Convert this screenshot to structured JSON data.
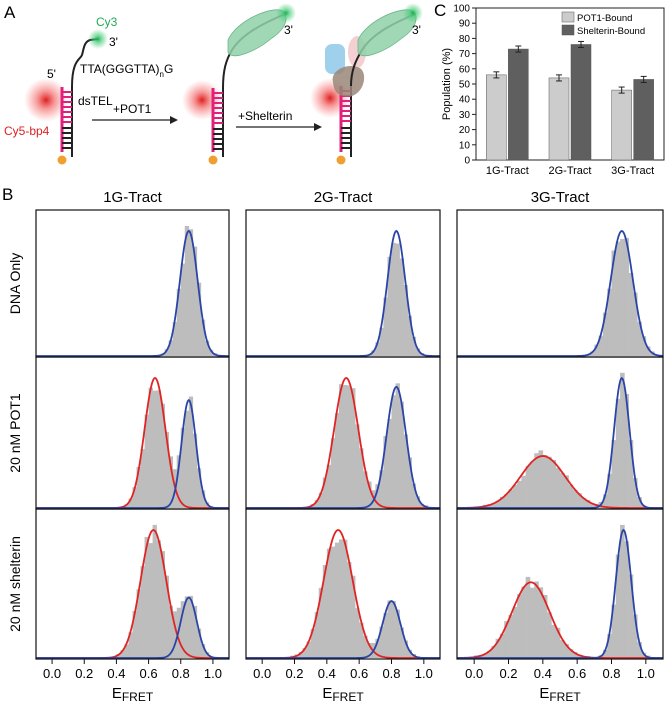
{
  "panels": {
    "a": "A",
    "b": "B",
    "c": "C"
  },
  "schematic": {
    "cy3": "Cy3",
    "three_prime": "3'",
    "five_prime": "5'",
    "sequence": "TTA(GGGTTA)",
    "sequence_sub": "n",
    "sequence_end": "G",
    "dstel": "dsTEL",
    "cy5": "Cy5-bp4",
    "plus_pot1": "+POT1",
    "plus_shelterin": "+Shelterin",
    "colors": {
      "cy3": "#22aa55",
      "cy5": "#dd2222",
      "stem": "#e0207a",
      "dot": "#f0a030",
      "pot1": "#8fd0a8"
    }
  },
  "chart_data": [
    {
      "type": "bar",
      "title": "",
      "ylabel": "Population (%)",
      "xlabel": "",
      "ylim": [
        0,
        100
      ],
      "yticks": [
        0,
        10,
        20,
        30,
        40,
        50,
        60,
        70,
        80,
        90,
        100
      ],
      "categories": [
        "1G-Tract",
        "2G-Tract",
        "3G-Tract"
      ],
      "series": [
        {
          "name": "POT1-Bound",
          "values": [
            56,
            54,
            46
          ],
          "errors": [
            2,
            2,
            2
          ],
          "color": "#cccccc"
        },
        {
          "name": "Shelterin-Bound",
          "values": [
            73,
            76,
            53
          ],
          "errors": [
            2,
            2,
            2
          ],
          "color": "#5f5f5f"
        }
      ],
      "legend": "top-right"
    },
    {
      "type": "histogram",
      "xlabel_main": "E",
      "xlabel_sub": "FRET",
      "xlim": [
        -0.1,
        1.1
      ],
      "xticks": [
        "0.0",
        "0.2",
        "0.4",
        "0.6",
        "0.8",
        "1.0"
      ],
      "columns": [
        "1G-Tract",
        "2G-Tract",
        "3G-Tract"
      ],
      "rows": [
        "DNA Only",
        "20 nM POT1",
        "20 nM shelterin"
      ],
      "bar_color": "#bdbdbd",
      "fit_colors": {
        "red": "#e02424",
        "blue": "#2a44a8"
      },
      "cells": [
        [
          {
            "blue": {
              "mu": 0.85,
              "sigma": 0.055,
              "amp": 1.0
            }
          },
          {
            "blue": {
              "mu": 0.83,
              "sigma": 0.055,
              "amp": 1.0
            }
          },
          {
            "blue": {
              "mu": 0.86,
              "sigma": 0.065,
              "amp": 1.0
            }
          }
        ],
        [
          {
            "red": {
              "mu": 0.64,
              "sigma": 0.065,
              "amp": 1.0
            },
            "blue": {
              "mu": 0.85,
              "sigma": 0.045,
              "amp": 0.83
            }
          },
          {
            "red": {
              "mu": 0.52,
              "sigma": 0.075,
              "amp": 0.88
            },
            "blue": {
              "mu": 0.83,
              "sigma": 0.06,
              "amp": 0.82
            }
          },
          {
            "red": {
              "mu": 0.4,
              "sigma": 0.13,
              "amp": 0.4
            },
            "blue": {
              "mu": 0.86,
              "sigma": 0.045,
              "amp": 1.0
            }
          }
        ],
        [
          {
            "red": {
              "mu": 0.63,
              "sigma": 0.08,
              "amp": 0.72
            },
            "blue": {
              "mu": 0.85,
              "sigma": 0.05,
              "amp": 0.34
            }
          },
          {
            "red": {
              "mu": 0.47,
              "sigma": 0.09,
              "amp": 0.72
            },
            "blue": {
              "mu": 0.8,
              "sigma": 0.055,
              "amp": 0.32
            }
          },
          {
            "red": {
              "mu": 0.33,
              "sigma": 0.11,
              "amp": 0.55
            },
            "blue": {
              "mu": 0.87,
              "sigma": 0.045,
              "amp": 0.93
            }
          }
        ]
      ]
    }
  ]
}
